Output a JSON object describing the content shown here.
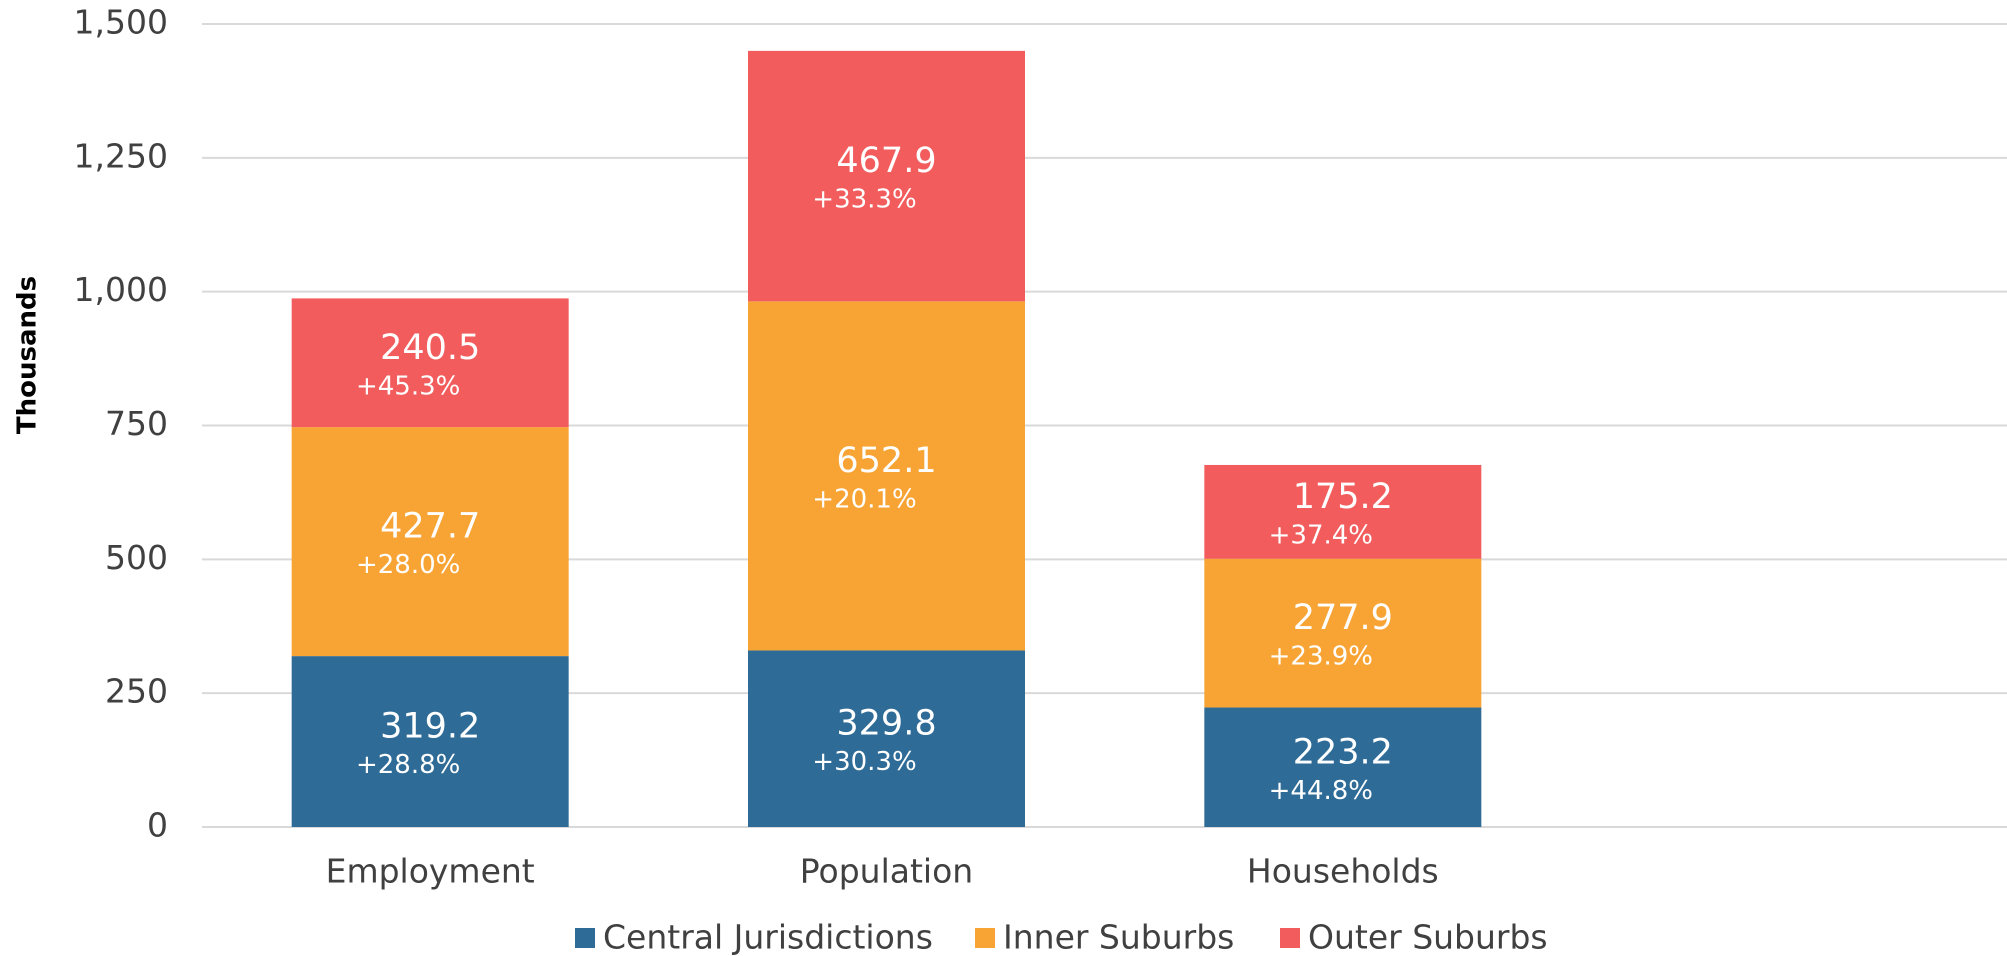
{
  "chart_data": {
    "type": "stacked_bar",
    "y_label": "Thousands",
    "categories": [
      "Employment",
      "Population",
      "Households"
    ],
    "series": [
      {
        "name": "Central Jurisdictions",
        "color": "#2e6b96",
        "values": [
          319.2,
          329.8,
          223.2
        ],
        "growth_labels": [
          "+28.8%",
          "+30.3%",
          "+44.8%"
        ]
      },
      {
        "name": "Inner Suburbs",
        "color": "#f8a435",
        "values": [
          427.7,
          652.1,
          277.9
        ],
        "growth_labels": [
          "+28.0%",
          "+20.1%",
          "+23.9%"
        ]
      },
      {
        "name": "Outer Suburbs",
        "color": "#f25c5c",
        "values": [
          240.5,
          467.9,
          175.2
        ],
        "growth_labels": [
          "+45.3%",
          "+33.3%",
          "+37.4%"
        ]
      }
    ],
    "ylim": [
      0,
      1500
    ],
    "yticks": [
      0,
      250,
      500,
      750,
      {
        "value": 1000,
        "label": "1,000"
      },
      {
        "value": 1250,
        "label": "1,250"
      },
      {
        "value": 1500,
        "label": "1,500"
      }
    ],
    "grid": true,
    "legend": "bottom"
  }
}
